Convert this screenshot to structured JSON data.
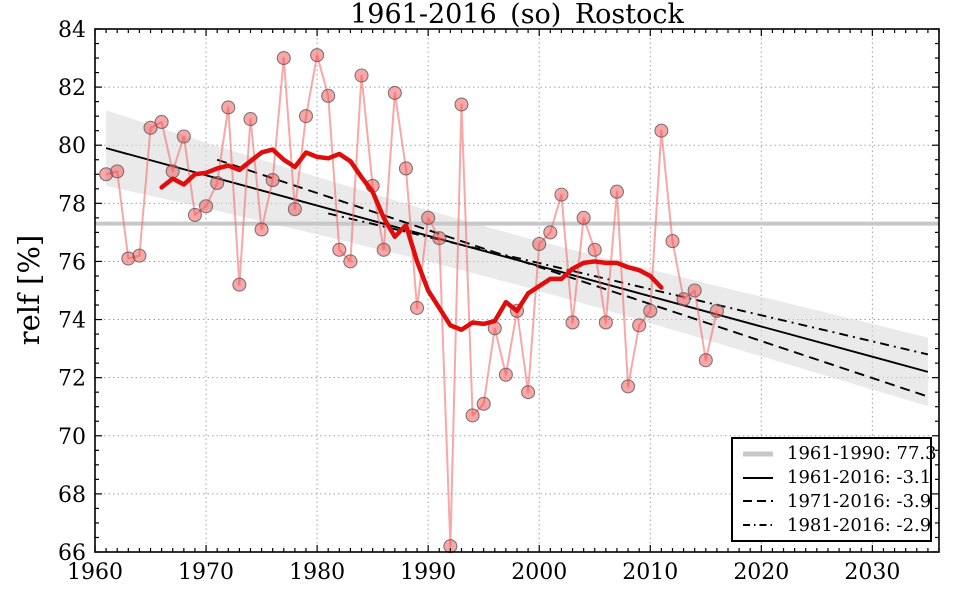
{
  "chart_data": {
    "type": "line",
    "title": "1961-2016_(so)_Rostock",
    "ylabel": "relf [%]",
    "xlabel": "",
    "xlim": [
      1960,
      2036
    ],
    "ylim": [
      66,
      84
    ],
    "x_ticks": [
      1960,
      1970,
      1980,
      1990,
      2000,
      2010,
      2020,
      2030
    ],
    "y_ticks": [
      66,
      68,
      70,
      72,
      74,
      76,
      78,
      80,
      82,
      84
    ],
    "grid": true,
    "legend_position": "lower right",
    "reference_mean": {
      "period": "1961-1990",
      "value": 77.3
    },
    "series": [
      {
        "name": "annual values",
        "start_year": 1961,
        "values": [
          79.0,
          79.1,
          76.1,
          76.2,
          80.6,
          80.8,
          79.1,
          80.3,
          77.6,
          77.9,
          78.7,
          81.3,
          75.2,
          80.9,
          77.1,
          78.8,
          83.0,
          77.8,
          81.0,
          83.1,
          81.7,
          76.4,
          76.0,
          82.4,
          78.6,
          76.4,
          81.8,
          79.2,
          74.4,
          77.5,
          76.8,
          66.2,
          81.4,
          70.7,
          71.1,
          73.7,
          72.1,
          74.3,
          71.5,
          76.6,
          77.0,
          78.3,
          73.9,
          77.5,
          76.4,
          73.9,
          78.4,
          71.7,
          73.8,
          74.3,
          80.5,
          76.7,
          74.7,
          75.0,
          72.6,
          74.3
        ]
      },
      {
        "name": "smoothed (11-yr running mean)",
        "start_year": 1966,
        "values": [
          78.55,
          78.85,
          78.65,
          79.0,
          79.05,
          79.2,
          79.3,
          79.15,
          79.45,
          79.75,
          79.85,
          79.5,
          79.25,
          79.75,
          79.6,
          79.55,
          79.7,
          79.45,
          78.9,
          78.4,
          77.5,
          76.85,
          77.25,
          76.0,
          75.0,
          74.4,
          73.8,
          73.65,
          73.9,
          73.85,
          73.95,
          74.6,
          74.3,
          74.9,
          75.15,
          75.4,
          75.4,
          75.75,
          75.95,
          76.0,
          75.95,
          75.95,
          75.8,
          75.7,
          75.5,
          75.1
        ]
      }
    ],
    "trends": [
      {
        "name": "1961-2016",
        "value": -3.1,
        "style": "solid",
        "start": [
          1961,
          79.9
        ],
        "end": [
          2035,
          72.2
        ]
      },
      {
        "name": "1971-2016",
        "value": -3.9,
        "style": "dashed",
        "start": [
          1971,
          79.5
        ],
        "end": [
          2035,
          71.35
        ]
      },
      {
        "name": "1981-2016",
        "value": -2.9,
        "style": "dashdot",
        "start": [
          1981,
          77.65
        ],
        "end": [
          2035,
          72.8
        ]
      }
    ],
    "confidence_band": {
      "years": [
        1961,
        1970,
        1980,
        1990,
        1998,
        2005,
        2015,
        2025,
        2035
      ],
      "top": [
        81.2,
        80.09,
        78.91,
        77.76,
        76.9,
        76.2,
        75.25,
        74.32,
        73.38
      ],
      "bottom": [
        78.6,
        77.83,
        76.93,
        76.0,
        75.2,
        74.44,
        73.31,
        72.16,
        71.02
      ]
    },
    "legend": {
      "entries": [
        {
          "label": "1961-1990: 77.3",
          "style": "mean"
        },
        {
          "label": "1961-2016: -3.1",
          "style": "solid"
        },
        {
          "label": "1971-2016: -3.9",
          "style": "dashed"
        },
        {
          "label": "1981-2016: -2.9",
          "style": "dashdot"
        }
      ]
    },
    "colors": {
      "annual_point_fill": "#f05050",
      "annual_point_edge": "#555555",
      "annual_line": "#f56d6d",
      "smoothed_line": "#e00d0d",
      "mean_line": "#c8c8c8",
      "trend_line": "#000000",
      "band_fill": "#d9d9d9",
      "grid": "#999999",
      "frame": "#000000"
    }
  }
}
